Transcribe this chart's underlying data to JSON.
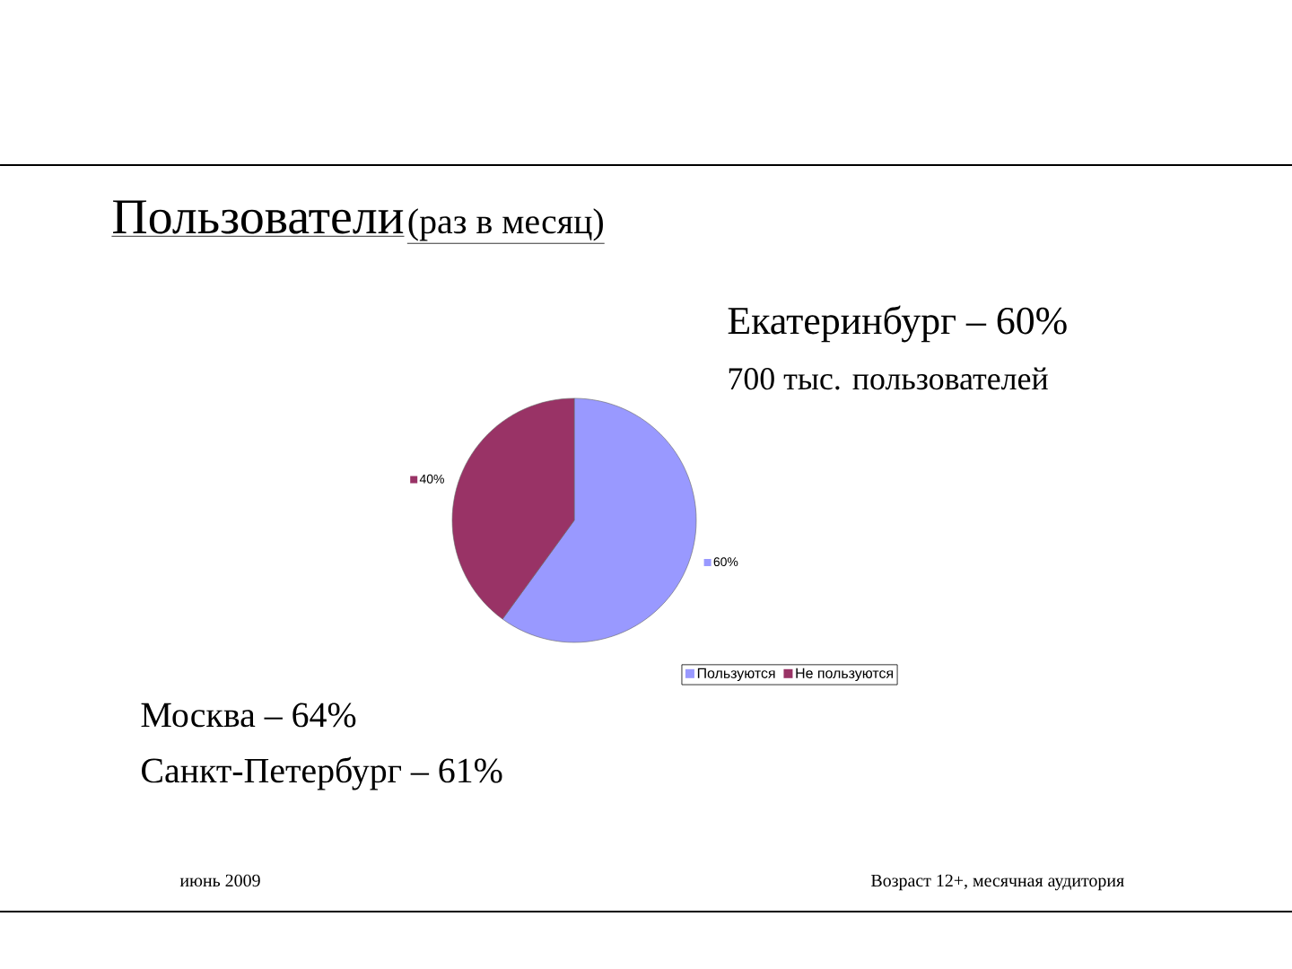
{
  "chart_data": {
    "type": "pie",
    "title": "Пользователи",
    "subtitle": "(раз в месяц)",
    "categories": [
      "Пользуются",
      "Не пользуются"
    ],
    "values": [
      60,
      40
    ],
    "colors": [
      "#9999ff",
      "#993366"
    ],
    "value_labels": [
      "60%",
      "40%"
    ],
    "legend": "bottom",
    "annotations": [
      "Екатеринбург – 60%",
      "700 тыс. пользователей",
      "Москва – 64%",
      "Санкт-Петербург – 61%",
      "июнь 2009",
      "Возраст 12+, месячная аудитория"
    ]
  }
}
